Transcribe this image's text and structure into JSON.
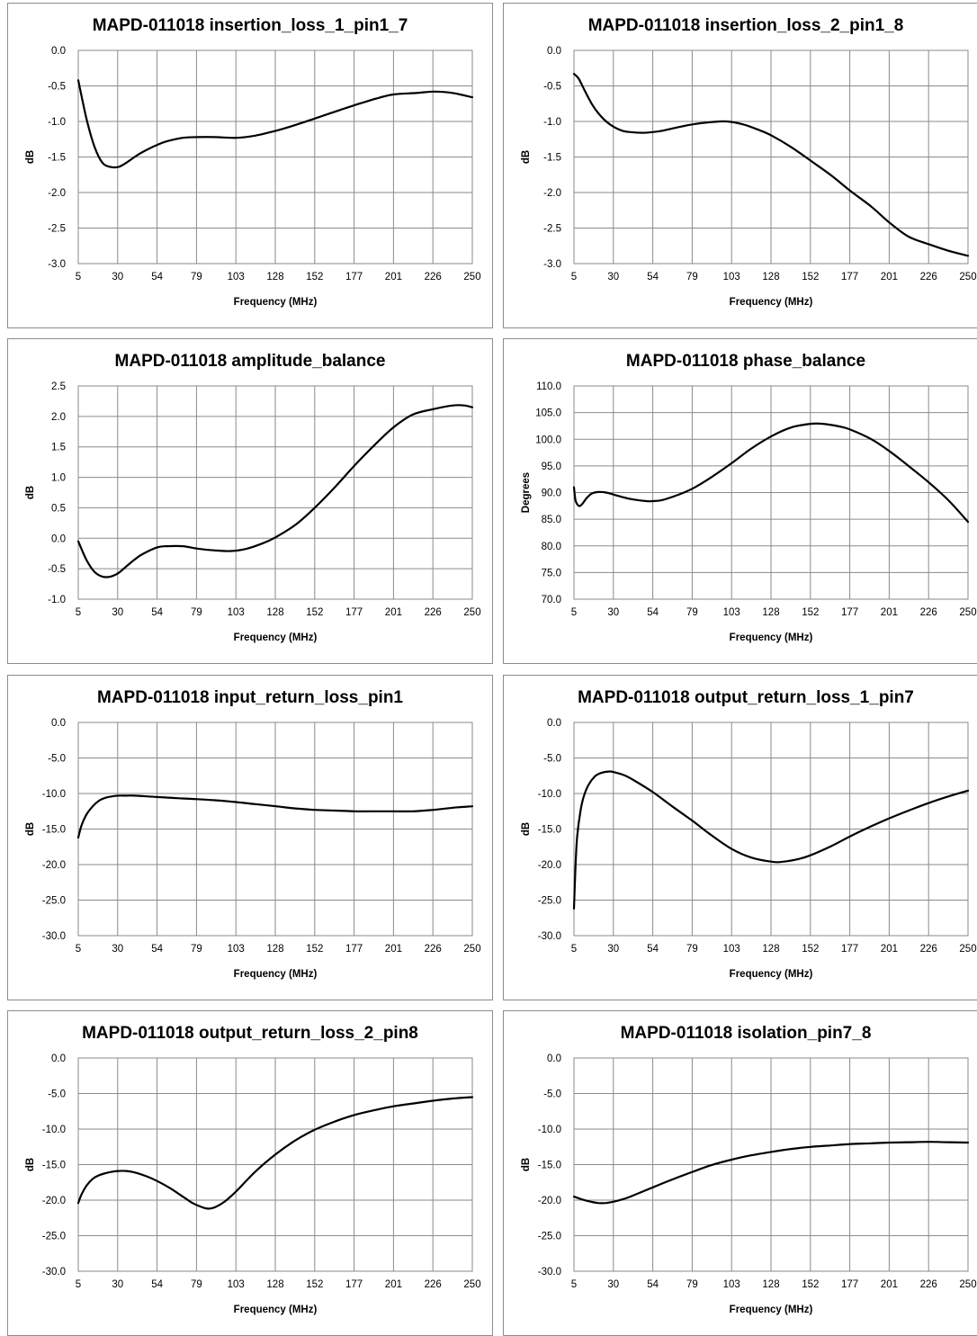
{
  "chart_data": [
    {
      "type": "line",
      "title": "MAPD-011018 insertion_loss_1_pin1_7",
      "xlabel": "Frequency (MHz)",
      "ylabel": "dB",
      "x_tick_labels": [
        "5",
        "30",
        "54",
        "79",
        "103",
        "128",
        "152",
        "177",
        "201",
        "226",
        "250"
      ],
      "y_tick_labels": [
        "0.0",
        "-0.5",
        "-1.0",
        "-1.5",
        "-2.0",
        "-2.5",
        "-3.0"
      ],
      "xlim": [
        5,
        250
      ],
      "ylim": [
        -3.0,
        0.0
      ],
      "grid": true,
      "series": [
        {
          "x": [
            5,
            10,
            15,
            20,
            25,
            30,
            35,
            40,
            45,
            54,
            60,
            70,
            79,
            90,
            103,
            115,
            128,
            140,
            152,
            165,
            177,
            190,
            201,
            215,
            226,
            238,
            250
          ],
          "values": [
            -0.42,
            -0.95,
            -1.35,
            -1.58,
            -1.64,
            -1.64,
            -1.58,
            -1.5,
            -1.43,
            -1.33,
            -1.28,
            -1.23,
            -1.22,
            -1.22,
            -1.23,
            -1.2,
            -1.13,
            -1.05,
            -0.96,
            -0.86,
            -0.77,
            -0.68,
            -0.62,
            -0.6,
            -0.58,
            -0.6,
            -0.66
          ]
        }
      ]
    },
    {
      "type": "line",
      "title": "MAPD-011018 insertion_loss_2_pin1_8",
      "xlabel": "Frequency (MHz)",
      "ylabel": "dB",
      "x_tick_labels": [
        "5",
        "30",
        "54",
        "79",
        "103",
        "128",
        "152",
        "177",
        "201",
        "226",
        "250"
      ],
      "y_tick_labels": [
        "0.0",
        "-0.5",
        "-1.0",
        "-1.5",
        "-2.0",
        "-2.5",
        "-3.0"
      ],
      "xlim": [
        5,
        250
      ],
      "ylim": [
        -3.0,
        0.0
      ],
      "grid": true,
      "series": [
        {
          "x": [
            5,
            8,
            12,
            16,
            20,
            25,
            30,
            35,
            40,
            48,
            54,
            60,
            70,
            79,
            90,
            100,
            110,
            120,
            128,
            140,
            152,
            165,
            177,
            190,
            201,
            213,
            226,
            238,
            250
          ],
          "values": [
            -0.33,
            -0.4,
            -0.58,
            -0.75,
            -0.88,
            -1.0,
            -1.08,
            -1.13,
            -1.15,
            -1.16,
            -1.15,
            -1.13,
            -1.08,
            -1.04,
            -1.01,
            -1.0,
            -1.04,
            -1.12,
            -1.2,
            -1.36,
            -1.55,
            -1.76,
            -1.98,
            -2.2,
            -2.42,
            -2.62,
            -2.73,
            -2.82,
            -2.89
          ]
        }
      ]
    },
    {
      "type": "line",
      "title": "MAPD-011018 amplitude_balance",
      "xlabel": "Frequency (MHz)",
      "ylabel": "dB",
      "x_tick_labels": [
        "5",
        "30",
        "54",
        "79",
        "103",
        "128",
        "152",
        "177",
        "201",
        "226",
        "250"
      ],
      "y_tick_labels": [
        "2.5",
        "2.0",
        "1.5",
        "1.0",
        "0.5",
        "0.0",
        "-0.5",
        "-1.0"
      ],
      "xlim": [
        5,
        250
      ],
      "ylim": [
        -1.0,
        2.5
      ],
      "grid": true,
      "series": [
        {
          "x": [
            5,
            10,
            15,
            20,
            25,
            30,
            35,
            40,
            45,
            54,
            60,
            70,
            79,
            90,
            100,
            110,
            120,
            128,
            140,
            152,
            165,
            177,
            190,
            201,
            213,
            226,
            238,
            245,
            250
          ],
          "values": [
            -0.05,
            -0.35,
            -0.55,
            -0.63,
            -0.63,
            -0.57,
            -0.46,
            -0.35,
            -0.26,
            -0.15,
            -0.13,
            -0.13,
            -0.17,
            -0.2,
            -0.21,
            -0.17,
            -0.08,
            0.02,
            0.22,
            0.5,
            0.85,
            1.2,
            1.55,
            1.82,
            2.03,
            2.12,
            2.18,
            2.18,
            2.15
          ]
        }
      ]
    },
    {
      "type": "line",
      "title": "MAPD-011018 phase_balance",
      "xlabel": "Frequency (MHz)",
      "ylabel": "Degrees",
      "x_tick_labels": [
        "5",
        "30",
        "54",
        "79",
        "103",
        "128",
        "152",
        "177",
        "201",
        "226",
        "250"
      ],
      "y_tick_labels": [
        "110.0",
        "105.0",
        "100.0",
        "95.0",
        "90.0",
        "85.0",
        "80.0",
        "75.0",
        "70.0"
      ],
      "xlim": [
        5,
        250
      ],
      "ylim": [
        70.0,
        110.0
      ],
      "grid": true,
      "series": [
        {
          "x": [
            5,
            6,
            8,
            10,
            13,
            16,
            20,
            25,
            30,
            40,
            50,
            54,
            60,
            70,
            79,
            90,
            103,
            115,
            128,
            140,
            152,
            160,
            170,
            177,
            190,
            201,
            213,
            226,
            238,
            250
          ],
          "values": [
            91.0,
            88.5,
            87.5,
            87.8,
            89.0,
            89.8,
            90.1,
            90.0,
            89.6,
            88.8,
            88.4,
            88.4,
            88.6,
            89.6,
            90.8,
            92.8,
            95.5,
            98.2,
            100.6,
            102.2,
            102.9,
            102.9,
            102.4,
            101.8,
            100.0,
            97.8,
            95.0,
            91.8,
            88.5,
            84.5
          ]
        }
      ]
    },
    {
      "type": "line",
      "title": "MAPD-011018 input_return_loss_pin1",
      "xlabel": "Frequency (MHz)",
      "ylabel": "dB",
      "x_tick_labels": [
        "5",
        "30",
        "54",
        "79",
        "103",
        "128",
        "152",
        "177",
        "201",
        "226",
        "250"
      ],
      "y_tick_labels": [
        "0.0",
        "-5.0",
        "-10.0",
        "-15.0",
        "-20.0",
        "-25.0",
        "-30.0"
      ],
      "xlim": [
        5,
        250
      ],
      "ylim": [
        -30.0,
        0.0
      ],
      "grid": true,
      "series": [
        {
          "x": [
            5,
            7,
            10,
            14,
            18,
            22,
            26,
            30,
            35,
            40,
            54,
            70,
            79,
            90,
            103,
            115,
            128,
            140,
            152,
            165,
            177,
            190,
            201,
            213,
            226,
            238,
            250
          ],
          "values": [
            -16.2,
            -14.5,
            -13.0,
            -11.8,
            -11.0,
            -10.6,
            -10.4,
            -10.3,
            -10.3,
            -10.3,
            -10.5,
            -10.7,
            -10.8,
            -10.95,
            -11.2,
            -11.5,
            -11.8,
            -12.1,
            -12.3,
            -12.4,
            -12.5,
            -12.5,
            -12.5,
            -12.5,
            -12.3,
            -12.0,
            -11.8
          ]
        }
      ]
    },
    {
      "type": "line",
      "title": "MAPD-011018 output_return_loss_1_pin7",
      "xlabel": "Frequency (MHz)",
      "ylabel": "dB",
      "x_tick_labels": [
        "5",
        "30",
        "54",
        "79",
        "103",
        "128",
        "152",
        "177",
        "201",
        "226",
        "250"
      ],
      "y_tick_labels": [
        "0.0",
        "-5.0",
        "-10.0",
        "-15.0",
        "-20.0",
        "-25.0",
        "-30.0"
      ],
      "xlim": [
        5,
        250
      ],
      "ylim": [
        -30.0,
        0.0
      ],
      "grid": true,
      "series": [
        {
          "x": [
            5,
            6,
            7,
            9,
            11,
            14,
            18,
            22,
            27,
            30,
            36,
            42,
            54,
            66,
            79,
            90,
            103,
            115,
            128,
            135,
            145,
            152,
            165,
            177,
            190,
            201,
            213,
            226,
            238,
            250
          ],
          "values": [
            -26.2,
            -20.0,
            -16.0,
            -12.5,
            -10.5,
            -8.8,
            -7.6,
            -7.1,
            -6.9,
            -7.0,
            -7.4,
            -8.1,
            -9.8,
            -11.8,
            -13.9,
            -15.8,
            -17.8,
            -19.0,
            -19.6,
            -19.6,
            -19.2,
            -18.7,
            -17.4,
            -16.0,
            -14.6,
            -13.5,
            -12.4,
            -11.3,
            -10.4,
            -9.6
          ]
        }
      ]
    },
    {
      "type": "line",
      "title": "MAPD-011018 output_return_loss_2_pin8",
      "xlabel": "Frequency (MHz)",
      "ylabel": "dB",
      "x_tick_labels": [
        "5",
        "30",
        "54",
        "79",
        "103",
        "128",
        "152",
        "177",
        "201",
        "226",
        "250"
      ],
      "y_tick_labels": [
        "0.0",
        "-5.0",
        "-10.0",
        "-15.0",
        "-20.0",
        "-25.0",
        "-30.0"
      ],
      "xlim": [
        5,
        250
      ],
      "ylim": [
        -30.0,
        0.0
      ],
      "grid": true,
      "series": [
        {
          "x": [
            5,
            7,
            10,
            14,
            18,
            22,
            26,
            30,
            35,
            40,
            48,
            54,
            62,
            70,
            76,
            82,
            86,
            90,
            96,
            103,
            115,
            128,
            140,
            152,
            165,
            177,
            190,
            201,
            213,
            226,
            238,
            250
          ],
          "values": [
            -20.4,
            -19.2,
            -18.0,
            -17.0,
            -16.5,
            -16.2,
            -16.0,
            -15.9,
            -15.9,
            -16.1,
            -16.7,
            -17.3,
            -18.3,
            -19.5,
            -20.4,
            -21.0,
            -21.2,
            -21.0,
            -20.2,
            -18.8,
            -16.0,
            -13.5,
            -11.6,
            -10.1,
            -8.9,
            -8.0,
            -7.3,
            -6.8,
            -6.4,
            -6.0,
            -5.7,
            -5.5
          ]
        }
      ]
    },
    {
      "type": "line",
      "title": "MAPD-011018 isolation_pin7_8",
      "xlabel": "Frequency (MHz)",
      "ylabel": "dB",
      "x_tick_labels": [
        "5",
        "30",
        "54",
        "79",
        "103",
        "128",
        "152",
        "177",
        "201",
        "226",
        "250"
      ],
      "y_tick_labels": [
        "0.0",
        "-5.0",
        "-10.0",
        "-15.0",
        "-20.0",
        "-25.0",
        "-30.0"
      ],
      "xlim": [
        5,
        250
      ],
      "ylim": [
        -30.0,
        0.0
      ],
      "grid": true,
      "series": [
        {
          "x": [
            5,
            10,
            15,
            20,
            25,
            30,
            35,
            40,
            54,
            66,
            79,
            90,
            103,
            115,
            128,
            140,
            152,
            165,
            177,
            190,
            201,
            213,
            226,
            238,
            250
          ],
          "values": [
            -19.5,
            -19.9,
            -20.2,
            -20.4,
            -20.4,
            -20.2,
            -19.9,
            -19.5,
            -18.2,
            -17.1,
            -16.0,
            -15.1,
            -14.3,
            -13.7,
            -13.2,
            -12.8,
            -12.5,
            -12.3,
            -12.1,
            -12.0,
            -11.9,
            -11.85,
            -11.8,
            -11.85,
            -11.9
          ]
        }
      ]
    }
  ]
}
